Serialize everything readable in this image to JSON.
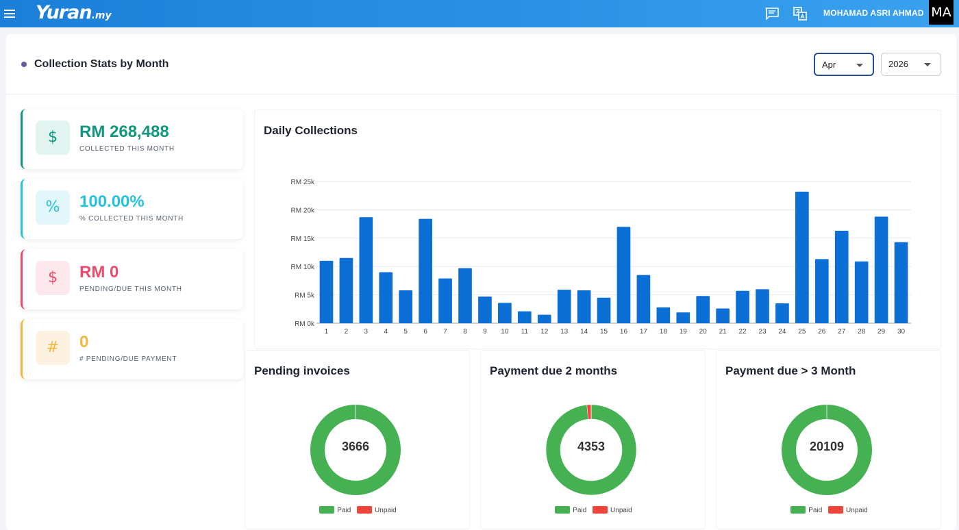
{
  "app": {
    "logo_main": "Yuran",
    "logo_suffix": ".my",
    "user_name": "MOHAMAD ASRI AHMAD",
    "avatar_initials": "MA",
    "icons": [
      "menu-icon",
      "chat-icon",
      "translate-icon"
    ]
  },
  "page": {
    "title": "Collection Stats by Month",
    "month_select": {
      "value": "Apr"
    },
    "year_select": {
      "value": "2026"
    }
  },
  "stats": [
    {
      "value": "RM 268,488",
      "label": "COLLECTED THIS MONTH",
      "icon": "$",
      "icon_name": "dollar-icon",
      "color": "#12977f",
      "bg": "#e1f4ef"
    },
    {
      "value": "100.00%",
      "label": "% COLLECTED THIS MONTH",
      "icon": "%",
      "icon_name": "percent-icon",
      "color": "#25c2de",
      "bg": "#e3f7fb"
    },
    {
      "value": "RM 0",
      "label": "PENDING/DUE THIS MONTH",
      "icon": "$",
      "icon_name": "dollar-icon",
      "color": "#ee4a6b",
      "bg": "#fde8ee"
    },
    {
      "value": "0",
      "label": "# PENDING/DUE PAYMENT",
      "icon": "#",
      "icon_name": "hash-icon",
      "color": "#f2b83c",
      "bg": "#fdf2e1"
    }
  ],
  "daily_chart": {
    "title": "Daily Collections",
    "chart_data": {
      "type": "bar",
      "categories": [
        "1",
        "2",
        "3",
        "4",
        "5",
        "6",
        "7",
        "8",
        "9",
        "10",
        "11",
        "12",
        "13",
        "14",
        "15",
        "16",
        "17",
        "18",
        "19",
        "20",
        "21",
        "22",
        "23",
        "24",
        "25",
        "26",
        "27",
        "28",
        "29",
        "30"
      ],
      "values": [
        11000,
        11500,
        18700,
        9000,
        5800,
        18400,
        7900,
        9700,
        4700,
        3600,
        2100,
        1500,
        5900,
        5800,
        4500,
        17000,
        8500,
        2800,
        1900,
        4800,
        2600,
        5700,
        6000,
        3500,
        23200,
        11300,
        16300,
        10900,
        18800,
        14300
      ],
      "ylim": [
        0,
        25000
      ],
      "yticks": [
        0,
        5000,
        10000,
        15000,
        20000,
        25000
      ],
      "ytick_labels": [
        "RM 0k",
        "RM 5k",
        "RM 10k",
        "RM 15k",
        "RM 20k",
        "RM 25k"
      ],
      "color": "#0b6fd6",
      "grid": true
    }
  },
  "donuts": [
    {
      "title": "Pending invoices",
      "center": "3666",
      "chart_data": {
        "type": "pie",
        "labels": [
          "Paid",
          "Unpaid"
        ],
        "values": [
          100,
          0
        ]
      }
    },
    {
      "title": "Payment due 2 months",
      "center": "4353",
      "chart_data": {
        "type": "pie",
        "labels": [
          "Paid",
          "Unpaid"
        ],
        "values": [
          98.5,
          1.5
        ]
      }
    },
    {
      "title": "Payment due > 3 Month",
      "center": "20109",
      "chart_data": {
        "type": "pie",
        "labels": [
          "Paid",
          "Unpaid"
        ],
        "values": [
          100,
          0
        ]
      }
    }
  ],
  "legend": {
    "paid_label": "Paid",
    "unpaid_label": "Unpaid",
    "paid_color": "#45b153",
    "unpaid_color": "#f04438"
  }
}
